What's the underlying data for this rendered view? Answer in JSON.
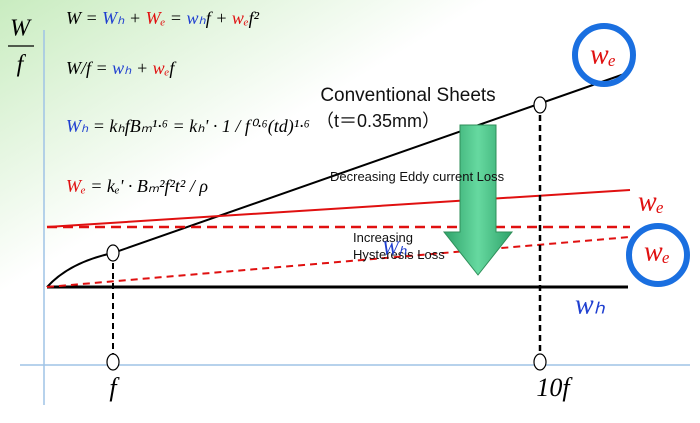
{
  "axis_label": {
    "numerator": "W",
    "denominator": "f"
  },
  "formulas": [
    [
      {
        "text": "W = ",
        "color": "#000000"
      },
      {
        "text": "Wₕ",
        "color": "#1f3fd0"
      },
      {
        "text": " + ",
        "color": "#000000"
      },
      {
        "text": "Wₑ",
        "color": "#e01010"
      },
      {
        "text": " = ",
        "color": "#000000"
      },
      {
        "text": "wₕ",
        "color": "#1f3fd0"
      },
      {
        "text": "f + ",
        "color": "#000000"
      },
      {
        "text": "wₑ",
        "color": "#e01010"
      },
      {
        "text": "f²",
        "color": "#000000"
      }
    ],
    [
      {
        "text": "W/f = ",
        "color": "#000000"
      },
      {
        "text": "wₕ",
        "color": "#1f3fd0"
      },
      {
        "text": " + ",
        "color": "#000000"
      },
      {
        "text": "wₑ",
        "color": "#e01010"
      },
      {
        "text": "f",
        "color": "#000000"
      }
    ],
    [
      {
        "text": "Wₕ",
        "color": "#1f3fd0"
      },
      {
        "text": " = kₕfBₘ¹·⁶ = kₕ' · 1 / f⁰·⁶(td)¹·⁶",
        "color": "#000000"
      }
    ],
    [
      {
        "text": "Wₑ",
        "color": "#e01010"
      },
      {
        "text": " = kₑ' · Bₘ²f²t² / ρ",
        "color": "#000000"
      }
    ]
  ],
  "conventional": {
    "title": "Conventional Sheets",
    "thickness": "（t＝0.35mm）"
  },
  "eddy_label": "Decreasing Eddy current Loss",
  "hysteresis_label": "Increasing Hysteresis Loss",
  "hysteresis_symbol": "Wₕ",
  "line_labels": {
    "we_top": "wₑ",
    "we_mid": "wₑ",
    "we_low": "wₑ",
    "wh": "wₕ"
  },
  "x_labels": {
    "f": "f",
    "ten_f": "10f"
  }
}
